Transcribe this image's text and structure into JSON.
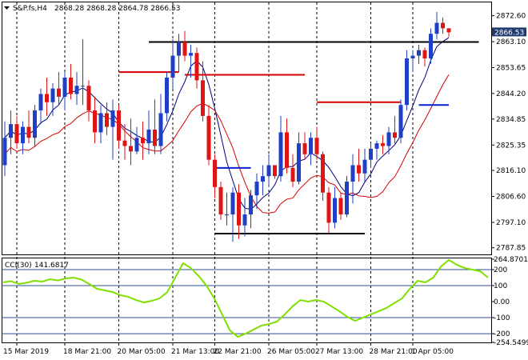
{
  "header": {
    "dropdown_icon": "triangle-down-icon",
    "symbol": "S&P.fs,H4",
    "ohlc": "2868.28 2868.28 2864.78 2866.53"
  },
  "cci_header": {
    "label": "CCI(30)",
    "value": "141.6817"
  },
  "current_price": "2866.53",
  "colors": {
    "up_candle": "#1f3fc4",
    "down_candle": "#e01414",
    "ma_fast": "#00007f",
    "ma_slow": "#d40000",
    "step_red": "#d40000",
    "step_blue": "#0a1fd0",
    "cci_line": "#7fe000",
    "cci_level": "#2f4f8f",
    "badge": "#1f3a6e",
    "grid": "#000000"
  },
  "chart_data": {
    "type": "candlestick",
    "timeframe": "H4",
    "price_axis": {
      "ticks": [
        "2872.60",
        "2863.10",
        "2853.65",
        "2844.20",
        "2834.85",
        "2825.35",
        "2816.10",
        "2806.60",
        "2797.10",
        "2787.85"
      ],
      "range": [
        2786.0,
        2876.0
      ]
    },
    "cci_axis": {
      "ticks": [
        "264.8701",
        "200",
        "100",
        "0.00",
        "-100",
        "-200",
        "-254.5499"
      ],
      "levels": [
        200,
        100,
        -100,
        -200
      ],
      "range": [
        -254.5499,
        264.8701
      ]
    },
    "time_axis": [
      "15 Mar 2019",
      "18 Mar 21:00",
      "20 Mar 05:00",
      "21 Mar 13:00",
      "22 Mar 21:00",
      "26 Mar 05:00",
      "27 Mar 13:00",
      "28 Mar 21:00",
      "1 Apr 05:00"
    ],
    "candles": [
      {
        "o": 2818,
        "h": 2834,
        "l": 2814,
        "c": 2828
      },
      {
        "o": 2828,
        "h": 2838,
        "l": 2822,
        "c": 2833
      },
      {
        "o": 2833,
        "h": 2836,
        "l": 2824,
        "c": 2826
      },
      {
        "o": 2826,
        "h": 2834,
        "l": 2822,
        "c": 2832
      },
      {
        "o": 2832,
        "h": 2838,
        "l": 2826,
        "c": 2828
      },
      {
        "o": 2828,
        "h": 2840,
        "l": 2825,
        "c": 2838
      },
      {
        "o": 2838,
        "h": 2846,
        "l": 2833,
        "c": 2844
      },
      {
        "o": 2844,
        "h": 2850,
        "l": 2836,
        "c": 2841
      },
      {
        "o": 2841,
        "h": 2848,
        "l": 2836,
        "c": 2846
      },
      {
        "o": 2846,
        "h": 2852,
        "l": 2840,
        "c": 2843
      },
      {
        "o": 2843,
        "h": 2852,
        "l": 2838,
        "c": 2850
      },
      {
        "o": 2850,
        "h": 2855,
        "l": 2842,
        "c": 2844
      },
      {
        "o": 2844,
        "h": 2852,
        "l": 2840,
        "c": 2847
      },
      {
        "o": 2847,
        "h": 2864,
        "l": 2840,
        "c": 2847
      },
      {
        "o": 2847,
        "h": 2849,
        "l": 2834,
        "c": 2838
      },
      {
        "o": 2838,
        "h": 2843,
        "l": 2826,
        "c": 2830
      },
      {
        "o": 2830,
        "h": 2840,
        "l": 2826,
        "c": 2837
      },
      {
        "o": 2837,
        "h": 2841,
        "l": 2829,
        "c": 2832
      },
      {
        "o": 2832,
        "h": 2842,
        "l": 2820,
        "c": 2838
      },
      {
        "o": 2838,
        "h": 2840,
        "l": 2824,
        "c": 2827
      },
      {
        "o": 2827,
        "h": 2833,
        "l": 2820,
        "c": 2825
      },
      {
        "o": 2825,
        "h": 2835,
        "l": 2818,
        "c": 2823
      },
      {
        "o": 2823,
        "h": 2832,
        "l": 2822,
        "c": 2828
      },
      {
        "o": 2828,
        "h": 2834,
        "l": 2820,
        "c": 2826
      },
      {
        "o": 2826,
        "h": 2838,
        "l": 2822,
        "c": 2831
      },
      {
        "o": 2831,
        "h": 2842,
        "l": 2822,
        "c": 2825
      },
      {
        "o": 2825,
        "h": 2844,
        "l": 2822,
        "c": 2837
      },
      {
        "o": 2837,
        "h": 2852,
        "l": 2834,
        "c": 2850
      },
      {
        "o": 2850,
        "h": 2864,
        "l": 2846,
        "c": 2858
      },
      {
        "o": 2858,
        "h": 2866,
        "l": 2852,
        "c": 2863
      },
      {
        "o": 2863,
        "h": 2867,
        "l": 2856,
        "c": 2858
      },
      {
        "o": 2858,
        "h": 2862,
        "l": 2850,
        "c": 2859
      },
      {
        "o": 2859,
        "h": 2861,
        "l": 2846,
        "c": 2849
      },
      {
        "o": 2849,
        "h": 2856,
        "l": 2834,
        "c": 2836
      },
      {
        "o": 2836,
        "h": 2840,
        "l": 2818,
        "c": 2820
      },
      {
        "o": 2820,
        "h": 2822,
        "l": 2806,
        "c": 2810
      },
      {
        "o": 2810,
        "h": 2812,
        "l": 2798,
        "c": 2800
      },
      {
        "o": 2800,
        "h": 2808,
        "l": 2796,
        "c": 2800
      },
      {
        "o": 2800,
        "h": 2810,
        "l": 2790,
        "c": 2808
      },
      {
        "o": 2808,
        "h": 2811,
        "l": 2791,
        "c": 2796
      },
      {
        "o": 2796,
        "h": 2806,
        "l": 2792,
        "c": 2800
      },
      {
        "o": 2800,
        "h": 2809,
        "l": 2795,
        "c": 2807
      },
      {
        "o": 2807,
        "h": 2815,
        "l": 2802,
        "c": 2812
      },
      {
        "o": 2812,
        "h": 2818,
        "l": 2807,
        "c": 2814
      },
      {
        "o": 2814,
        "h": 2822,
        "l": 2810,
        "c": 2818
      },
      {
        "o": 2818,
        "h": 2818,
        "l": 2813,
        "c": 2814
      },
      {
        "o": 2814,
        "h": 2836,
        "l": 2812,
        "c": 2830
      },
      {
        "o": 2830,
        "h": 2835,
        "l": 2815,
        "c": 2817
      },
      {
        "o": 2817,
        "h": 2822,
        "l": 2810,
        "c": 2812
      },
      {
        "o": 2812,
        "h": 2830,
        "l": 2811,
        "c": 2826
      },
      {
        "o": 2826,
        "h": 2830,
        "l": 2820,
        "c": 2822
      },
      {
        "o": 2822,
        "h": 2830,
        "l": 2818,
        "c": 2828
      },
      {
        "o": 2828,
        "h": 2832,
        "l": 2820,
        "c": 2822
      },
      {
        "o": 2822,
        "h": 2823,
        "l": 2805,
        "c": 2808
      },
      {
        "o": 2808,
        "h": 2810,
        "l": 2793,
        "c": 2797
      },
      {
        "o": 2797,
        "h": 2810,
        "l": 2795,
        "c": 2806
      },
      {
        "o": 2806,
        "h": 2808,
        "l": 2798,
        "c": 2800
      },
      {
        "o": 2800,
        "h": 2814,
        "l": 2799,
        "c": 2812
      },
      {
        "o": 2812,
        "h": 2822,
        "l": 2804,
        "c": 2818
      },
      {
        "o": 2818,
        "h": 2824,
        "l": 2812,
        "c": 2815
      },
      {
        "o": 2815,
        "h": 2824,
        "l": 2812,
        "c": 2820
      },
      {
        "o": 2820,
        "h": 2826,
        "l": 2817,
        "c": 2824
      },
      {
        "o": 2824,
        "h": 2827,
        "l": 2820,
        "c": 2826
      },
      {
        "o": 2826,
        "h": 2829,
        "l": 2822,
        "c": 2825
      },
      {
        "o": 2825,
        "h": 2832,
        "l": 2822,
        "c": 2830
      },
      {
        "o": 2830,
        "h": 2836,
        "l": 2826,
        "c": 2828
      },
      {
        "o": 2828,
        "h": 2842,
        "l": 2826,
        "c": 2840
      },
      {
        "o": 2840,
        "h": 2860,
        "l": 2838,
        "c": 2857
      },
      {
        "o": 2857,
        "h": 2860,
        "l": 2852,
        "c": 2858
      },
      {
        "o": 2858,
        "h": 2862,
        "l": 2855,
        "c": 2860
      },
      {
        "o": 2860,
        "h": 2861,
        "l": 2854,
        "c": 2857
      },
      {
        "o": 2857,
        "h": 2868,
        "l": 2855,
        "c": 2866
      },
      {
        "o": 2866,
        "h": 2874,
        "l": 2864,
        "c": 2870
      },
      {
        "o": 2870,
        "h": 2872,
        "l": 2866,
        "c": 2868
      },
      {
        "o": 2868,
        "h": 2868,
        "l": 2864.78,
        "c": 2866.53
      }
    ],
    "step_line_red": [
      {
        "from": 19,
        "to": 29,
        "v": 2852
      },
      {
        "from": 30,
        "to": 50,
        "v": 2851
      },
      {
        "from": 52,
        "to": 66,
        "v": 2841
      }
    ],
    "step_line_blue": [
      {
        "from": 35,
        "to": 41,
        "v": 2817
      },
      {
        "from": 69,
        "to": 74,
        "v": 2840
      }
    ],
    "support_resistance": [
      {
        "from": 24,
        "to": 79,
        "v": 2863
      },
      {
        "from": 35,
        "to": 60,
        "v": 2793
      }
    ],
    "cci_values": [
      120,
      128,
      110,
      118,
      130,
      125,
      140,
      132,
      145,
      150,
      138,
      110,
      80,
      70,
      60,
      40,
      30,
      10,
      -5,
      5,
      20,
      60,
      150,
      240,
      210,
      160,
      100,
      20,
      -80,
      -180,
      -220,
      -200,
      -175,
      -150,
      -140,
      -125,
      -80,
      -30,
      10,
      0,
      10,
      0,
      -30,
      -60,
      -95,
      -120,
      -100,
      -80,
      -60,
      -40,
      -10,
      20,
      80,
      130,
      120,
      150,
      220,
      260,
      230,
      210,
      200,
      190,
      150
    ]
  }
}
